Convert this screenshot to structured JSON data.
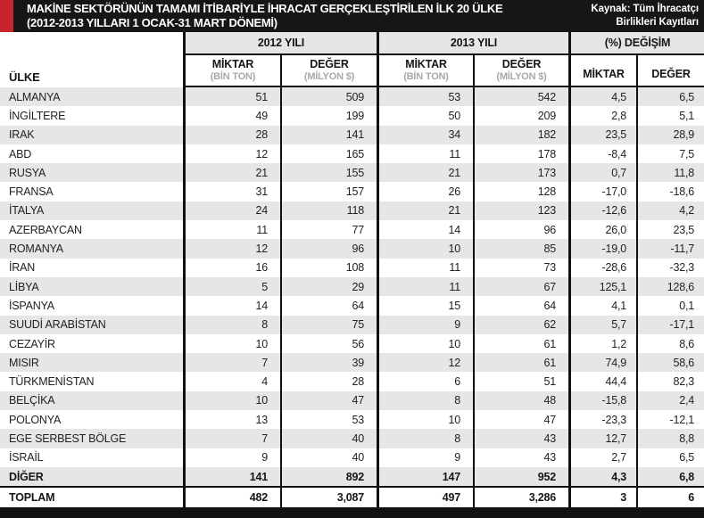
{
  "header": {
    "title_line1": "MAKİNE SEKTÖRÜNÜN TAMAMI İTİBARİYLE İHRACAT GERÇEKLEŞTİRİLEN İLK 20 ÜLKE",
    "title_line2": "(2012-2013 YILLARI 1 OCAK-31 MART DÖNEMİ)",
    "source_line1": "Kaynak: Tüm İhracatçı",
    "source_line2": "Birlikleri Kayıtları"
  },
  "columns": {
    "country": "ÜLKE",
    "groups": [
      {
        "label": "2012 YILI"
      },
      {
        "label": "2013 YILI"
      },
      {
        "label": "(%) DEĞİŞİM"
      }
    ],
    "sub": {
      "miktar": "MİKTAR",
      "deger": "DEĞER",
      "unit_ton": "(BİN TON)",
      "unit_usd": "(MİLYON $)"
    }
  },
  "colors": {
    "accent_red": "#c9242b",
    "band_black": "#161616",
    "stripe_gray": "#e6e6e7",
    "unit_gray": "#a6a8ab"
  },
  "chart_data": {
    "type": "table",
    "title": "MAKİNE SEKTÖRÜNÜN TAMAMI İTİBARİYLE İHRACAT GERÇEKLEŞTİRİLEN İLK 20 ÜLKE (2012-2013 YILLARI 1 OCAK-31 MART DÖNEMİ)",
    "source": "Kaynak: Tüm İhracatçı Birlikleri Kayıtları",
    "columns": [
      "ÜLKE",
      "2012 MİKTAR (BİN TON)",
      "2012 DEĞER (MİLYON $)",
      "2013 MİKTAR (BİN TON)",
      "2013 DEĞER (MİLYON $)",
      "(%) DEĞİŞİM MİKTAR",
      "(%) DEĞİŞİM DEĞER"
    ],
    "rows": [
      {
        "country": "ALMANYA",
        "values": [
          "51",
          "509",
          "53",
          "542",
          "4,5",
          "6,5"
        ]
      },
      {
        "country": "İNGİLTERE",
        "values": [
          "49",
          "199",
          "50",
          "209",
          "2,8",
          "5,1"
        ]
      },
      {
        "country": "IRAK",
        "values": [
          "28",
          "141",
          "34",
          "182",
          "23,5",
          "28,9"
        ]
      },
      {
        "country": "ABD",
        "values": [
          "12",
          "165",
          "11",
          "178",
          "-8,4",
          "7,5"
        ]
      },
      {
        "country": "RUSYA",
        "values": [
          "21",
          "155",
          "21",
          "173",
          "0,7",
          "11,8"
        ]
      },
      {
        "country": "FRANSA",
        "values": [
          "31",
          "157",
          "26",
          "128",
          "-17,0",
          "-18,6"
        ]
      },
      {
        "country": "İTALYA",
        "values": [
          "24",
          "118",
          "21",
          "123",
          "-12,6",
          "4,2"
        ]
      },
      {
        "country": "AZERBAYCAN",
        "values": [
          "11",
          "77",
          "14",
          "96",
          "26,0",
          "23,5"
        ]
      },
      {
        "country": "ROMANYA",
        "values": [
          "12",
          "96",
          "10",
          "85",
          "-19,0",
          "-11,7"
        ]
      },
      {
        "country": "İRAN",
        "values": [
          "16",
          "108",
          "11",
          "73",
          "-28,6",
          "-32,3"
        ]
      },
      {
        "country": "LİBYA",
        "values": [
          "5",
          "29",
          "11",
          "67",
          "125,1",
          "128,6"
        ]
      },
      {
        "country": "İSPANYA",
        "values": [
          "14",
          "64",
          "15",
          "64",
          "4,1",
          "0,1"
        ]
      },
      {
        "country": "SUUDİ ARABİSTAN",
        "values": [
          "8",
          "75",
          "9",
          "62",
          "5,7",
          "-17,1"
        ]
      },
      {
        "country": "CEZAYİR",
        "values": [
          "10",
          "56",
          "10",
          "61",
          "1,2",
          "8,6"
        ]
      },
      {
        "country": "MISIR",
        "values": [
          "7",
          "39",
          "12",
          "61",
          "74,9",
          "58,6"
        ]
      },
      {
        "country": "TÜRKMENİSTAN",
        "values": [
          "4",
          "28",
          "6",
          "51",
          "44,4",
          "82,3"
        ]
      },
      {
        "country": "BELÇİKA",
        "values": [
          "10",
          "47",
          "8",
          "48",
          "-15,8",
          "2,4"
        ]
      },
      {
        "country": "POLONYA",
        "values": [
          "13",
          "53",
          "10",
          "47",
          "-23,3",
          "-12,1"
        ]
      },
      {
        "country": "EGE SERBEST BÖLGE",
        "values": [
          "7",
          "40",
          "8",
          "43",
          "12,7",
          "8,8"
        ]
      },
      {
        "country": "İSRAİL",
        "values": [
          "9",
          "40",
          "9",
          "43",
          "2,7",
          "6,5"
        ]
      },
      {
        "country": "DİĞER",
        "values": [
          "141",
          "892",
          "147",
          "952",
          "4,3",
          "6,8"
        ],
        "emphasis": true
      },
      {
        "country": "TOPLAM",
        "values": [
          "482",
          "3,087",
          "497",
          "3,286",
          "3",
          "6"
        ],
        "emphasis": true,
        "total": true
      }
    ]
  }
}
